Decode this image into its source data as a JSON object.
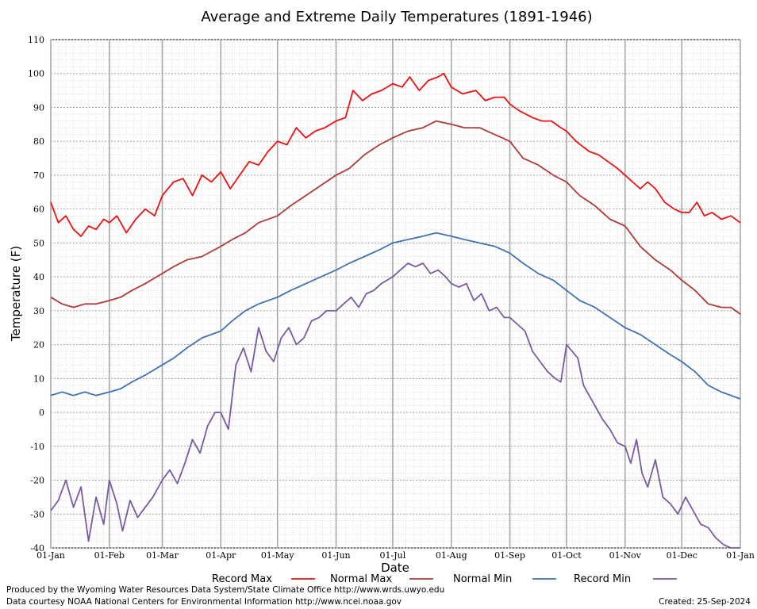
{
  "footer": {
    "produced_by": "Produced by the Wyoming Water Resources Data System/State Climate Office http://www.wrds.uwyo.edu",
    "courtesy": "Data courtesy NOAA National Centers for Environmental Information http://www.ncei.noaa.gov",
    "created": "Created: 25-Sep-2024"
  },
  "chart_data": {
    "type": "line",
    "title": "Average and Extreme Daily Temperatures (1891-1946)",
    "xlabel": "Date",
    "ylabel": "Temperature (F)",
    "ylim": [
      -40,
      110
    ],
    "yticks": [
      -40,
      -30,
      -20,
      -10,
      0,
      10,
      20,
      30,
      40,
      50,
      60,
      70,
      80,
      90,
      100,
      110
    ],
    "xlim_days": [
      0,
      365
    ],
    "xticks": [
      {
        "label": "01-Jan",
        "day": 0
      },
      {
        "label": "01-Feb",
        "day": 31
      },
      {
        "label": "01-Mar",
        "day": 59
      },
      {
        "label": "01-Apr",
        "day": 90
      },
      {
        "label": "01-May",
        "day": 120
      },
      {
        "label": "01-Jun",
        "day": 151
      },
      {
        "label": "01-Jul",
        "day": 181
      },
      {
        "label": "01-Aug",
        "day": 212
      },
      {
        "label": "01-Sep",
        "day": 243
      },
      {
        "label": "01-Oct",
        "day": 273
      },
      {
        "label": "01-Nov",
        "day": 304
      },
      {
        "label": "01-Dec",
        "day": 334
      },
      {
        "label": "01-Jan",
        "day": 365
      }
    ],
    "grid": true,
    "legend_position": "bottom",
    "series": [
      {
        "name": "Record Max",
        "color": "#ee1111",
        "x": [
          0,
          4,
          8,
          12,
          16,
          20,
          24,
          28,
          31,
          35,
          40,
          45,
          50,
          55,
          59,
          65,
          70,
          75,
          80,
          85,
          90,
          95,
          100,
          105,
          110,
          115,
          120,
          125,
          130,
          135,
          140,
          145,
          151,
          156,
          160,
          165,
          170,
          175,
          181,
          186,
          190,
          195,
          200,
          205,
          208,
          212,
          218,
          225,
          230,
          235,
          240,
          243,
          248,
          255,
          260,
          265,
          270,
          273,
          278,
          285,
          290,
          295,
          300,
          304,
          308,
          312,
          316,
          320,
          325,
          330,
          334,
          338,
          342,
          346,
          350,
          355,
          360,
          365
        ],
        "y": [
          62,
          56,
          58,
          54,
          52,
          55,
          54,
          57,
          56,
          58,
          53,
          57,
          60,
          58,
          64,
          68,
          69,
          64,
          70,
          68,
          71,
          66,
          70,
          74,
          73,
          77,
          80,
          79,
          84,
          81,
          83,
          84,
          86,
          87,
          95,
          92,
          94,
          95,
          97,
          96,
          99,
          95,
          98,
          99,
          100,
          96,
          94,
          95,
          92,
          93,
          93,
          91,
          89,
          87,
          86,
          86,
          84,
          83,
          80,
          77,
          76,
          74,
          72,
          70,
          68,
          66,
          68,
          66,
          62,
          60,
          59,
          59,
          62,
          58,
          59,
          57,
          58,
          56
        ]
      },
      {
        "name": "Normal Max",
        "color": "#b03a3a",
        "x": [
          0,
          6,
          12,
          18,
          24,
          31,
          37,
          43,
          50,
          59,
          65,
          72,
          80,
          90,
          96,
          103,
          110,
          120,
          127,
          135,
          143,
          151,
          158,
          166,
          174,
          181,
          189,
          197,
          204,
          212,
          219,
          227,
          235,
          243,
          250,
          258,
          266,
          273,
          280,
          288,
          296,
          304,
          312,
          320,
          328,
          334,
          341,
          348,
          355,
          360,
          365
        ],
        "y": [
          34,
          32,
          31,
          32,
          32,
          33,
          34,
          36,
          38,
          41,
          43,
          45,
          46,
          49,
          51,
          53,
          56,
          58,
          61,
          64,
          67,
          70,
          72,
          76,
          79,
          81,
          83,
          84,
          86,
          85,
          84,
          84,
          82,
          80,
          75,
          73,
          70,
          68,
          64,
          61,
          57,
          55,
          49,
          45,
          42,
          39,
          36,
          32,
          31,
          31,
          29
        ]
      },
      {
        "name": "Normal Min",
        "color": "#3f73b2",
        "x": [
          0,
          6,
          12,
          18,
          24,
          31,
          37,
          43,
          50,
          59,
          65,
          72,
          80,
          90,
          96,
          103,
          110,
          120,
          127,
          135,
          143,
          151,
          158,
          166,
          174,
          181,
          189,
          197,
          204,
          212,
          219,
          227,
          235,
          243,
          250,
          258,
          266,
          273,
          280,
          288,
          296,
          304,
          312,
          320,
          328,
          334,
          341,
          348,
          355,
          360,
          365
        ],
        "y": [
          5,
          6,
          5,
          6,
          5,
          6,
          7,
          9,
          11,
          14,
          16,
          19,
          22,
          24,
          27,
          30,
          32,
          34,
          36,
          38,
          40,
          42,
          44,
          46,
          48,
          50,
          51,
          52,
          53,
          52,
          51,
          50,
          49,
          47,
          44,
          41,
          39,
          36,
          33,
          31,
          28,
          25,
          23,
          20,
          17,
          15,
          12,
          8,
          6,
          5,
          4
        ]
      },
      {
        "name": "Record Min",
        "color": "#7a5aa0",
        "x": [
          0,
          4,
          8,
          12,
          16,
          20,
          24,
          28,
          31,
          35,
          38,
          42,
          46,
          50,
          54,
          59,
          63,
          67,
          71,
          75,
          79,
          83,
          87,
          90,
          94,
          98,
          102,
          106,
          110,
          114,
          118,
          122,
          126,
          130,
          134,
          138,
          142,
          146,
          151,
          155,
          159,
          163,
          167,
          171,
          175,
          181,
          185,
          189,
          193,
          197,
          201,
          205,
          209,
          212,
          216,
          220,
          224,
          228,
          232,
          236,
          240,
          243,
          247,
          251,
          255,
          259,
          263,
          267,
          270,
          273,
          276,
          279,
          282,
          285,
          288,
          292,
          296,
          300,
          304,
          307,
          310,
          313,
          316,
          320,
          324,
          328,
          332,
          336,
          340,
          344,
          348,
          352,
          356,
          360,
          365
        ],
        "y": [
          -29,
          -26,
          -20,
          -28,
          -22,
          -38,
          -25,
          -33,
          -20,
          -27,
          -35,
          -26,
          -31,
          -28,
          -25,
          -20,
          -17,
          -21,
          -15,
          -8,
          -12,
          -4,
          0,
          0,
          -5,
          14,
          19,
          12,
          25,
          18,
          15,
          22,
          25,
          20,
          22,
          27,
          28,
          30,
          30,
          32,
          34,
          31,
          35,
          36,
          38,
          40,
          42,
          44,
          43,
          44,
          41,
          42,
          40,
          38,
          37,
          38,
          33,
          35,
          30,
          31,
          28,
          28,
          26,
          24,
          18,
          15,
          12,
          10,
          9,
          20,
          18,
          16,
          8,
          5,
          2,
          -2,
          -5,
          -9,
          -10,
          -15,
          -8,
          -18,
          -22,
          -14,
          -25,
          -27,
          -30,
          -25,
          -29,
          -33,
          -34,
          -37,
          -39,
          -40,
          -40
        ]
      }
    ]
  }
}
